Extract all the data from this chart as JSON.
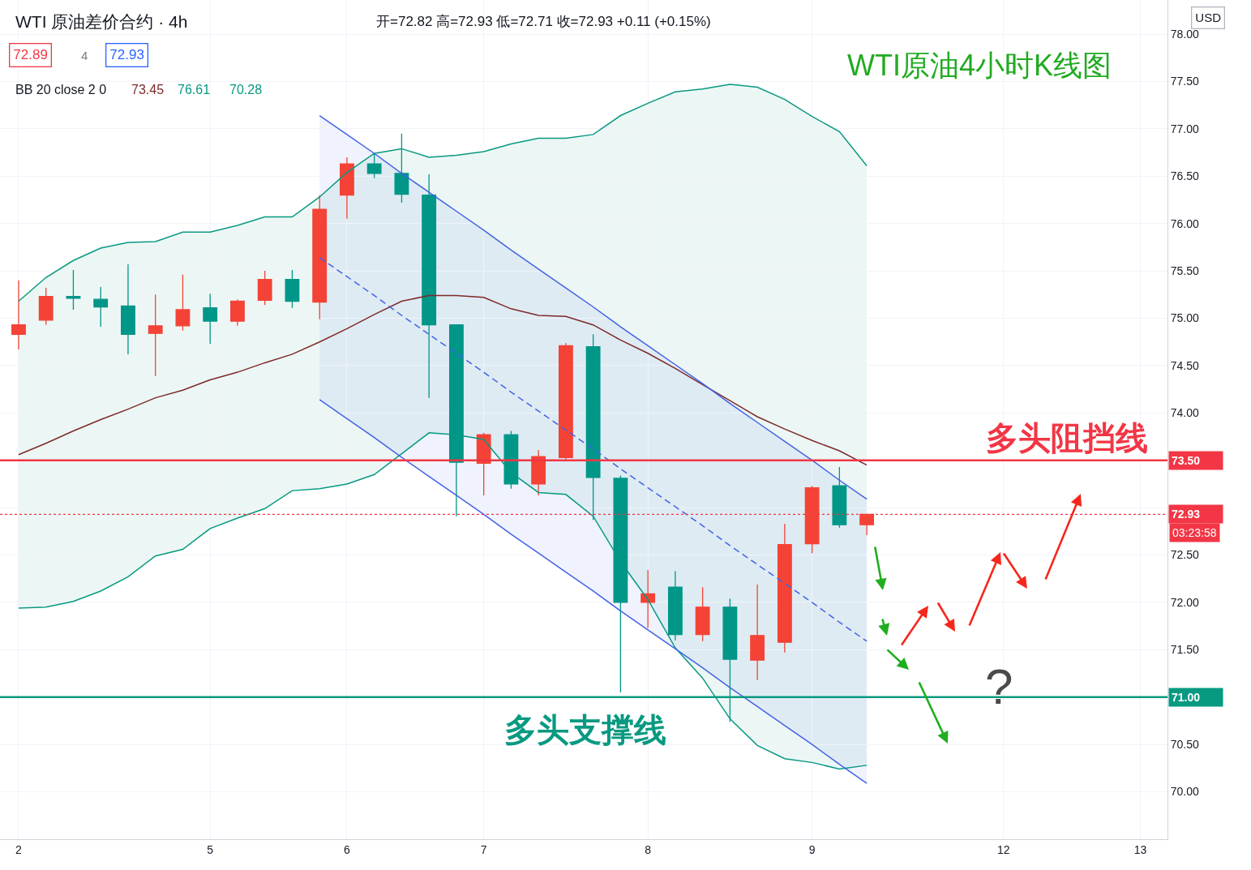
{
  "chart_data": {
    "type": "candlestick",
    "title": "WTI原油4小时K线图",
    "subtitle": "WTI 原油差价合约 · 4h",
    "categories": [
      "2",
      null,
      null,
      null,
      null,
      null,
      null,
      "5",
      null,
      null,
      null,
      null,
      "6",
      null,
      null,
      null,
      null,
      "7",
      null,
      null,
      null,
      null,
      null,
      "8",
      null,
      null,
      null,
      null,
      null,
      "9",
      null,
      null,
      null,
      null,
      null,
      null,
      "12",
      null,
      null,
      null,
      null,
      "13"
    ],
    "ohlc": [
      [
        74.83,
        75.4,
        74.67,
        74.93
      ],
      [
        74.98,
        75.32,
        74.93,
        75.23
      ],
      [
        75.23,
        75.51,
        75.09,
        75.21
      ],
      [
        75.2,
        75.33,
        74.91,
        75.12
      ],
      [
        75.13,
        75.57,
        74.62,
        74.83
      ],
      [
        74.84,
        75.25,
        74.39,
        74.92
      ],
      [
        74.92,
        75.46,
        74.87,
        75.09
      ],
      [
        75.11,
        75.26,
        74.73,
        74.97
      ],
      [
        74.97,
        75.2,
        74.92,
        75.18
      ],
      [
        75.19,
        75.5,
        75.14,
        75.41
      ],
      [
        75.41,
        75.51,
        75.11,
        75.18
      ],
      [
        75.17,
        76.3,
        74.99,
        76.15
      ],
      [
        76.3,
        76.7,
        76.05,
        76.63
      ],
      [
        76.63,
        76.74,
        76.48,
        76.53
      ],
      [
        76.53,
        76.95,
        76.22,
        76.31
      ],
      [
        76.3,
        76.52,
        74.16,
        74.93
      ],
      [
        74.93,
        74.93,
        72.91,
        73.48
      ],
      [
        73.47,
        73.79,
        73.13,
        73.77
      ],
      [
        73.77,
        73.81,
        73.2,
        73.25
      ],
      [
        73.25,
        73.61,
        73.13,
        73.54
      ],
      [
        73.53,
        74.74,
        73.5,
        74.71
      ],
      [
        74.7,
        74.83,
        72.87,
        73.32
      ],
      [
        73.31,
        73.34,
        71.05,
        72.0
      ],
      [
        72.0,
        72.34,
        71.73,
        72.09
      ],
      [
        72.16,
        72.33,
        71.6,
        71.66
      ],
      [
        71.66,
        72.16,
        71.59,
        71.95
      ],
      [
        71.95,
        72.04,
        70.74,
        71.4
      ],
      [
        71.39,
        72.19,
        71.18,
        71.65
      ],
      [
        71.58,
        72.83,
        71.47,
        72.61
      ],
      [
        72.62,
        73.23,
        72.52,
        73.21
      ],
      [
        73.23,
        73.43,
        72.79,
        72.82
      ],
      [
        72.82,
        72.93,
        72.71,
        72.93
      ],
      null,
      null,
      null,
      null,
      null,
      null,
      null,
      null,
      null,
      null
    ],
    "colors": [
      "#f44336",
      "#f44336",
      "#009688",
      "#009688",
      "#009688",
      "#f44336",
      "#f44336",
      "#009688",
      "#f44336",
      "#f44336",
      "#009688",
      "#f44336",
      "#f44336",
      "#009688",
      "#009688",
      "#009688",
      "#009688",
      "#f44336",
      "#009688",
      "#f44336",
      "#f44336",
      "#009688",
      "#009688",
      "#f44336",
      "#009688",
      "#f44336",
      "#009688",
      "#f44336",
      "#f44336",
      "#f44336",
      "#009688",
      "#f44336",
      null,
      null,
      null,
      null,
      null,
      null,
      null,
      null,
      null,
      null
    ],
    "series": [
      {
        "type": "line",
        "color": "#089981",
        "values": [
          75.18,
          75.43,
          75.61,
          75.74,
          75.8,
          75.81,
          75.91,
          75.91,
          75.98,
          76.07,
          76.07,
          76.28,
          76.54,
          76.74,
          76.79,
          76.7,
          76.72,
          76.76,
          76.84,
          76.9,
          76.9,
          76.94,
          77.14,
          77.27,
          77.39,
          77.42,
          77.47,
          77.44,
          77.31,
          77.13,
          76.97,
          76.61,
          null,
          null,
          null,
          null,
          null,
          null,
          null,
          null,
          null,
          null
        ],
        "lower": [
          71.94,
          71.95,
          72.01,
          72.12,
          72.27,
          72.49,
          72.56,
          72.78,
          72.89,
          72.99,
          73.18,
          73.2,
          73.25,
          73.35,
          73.57,
          73.79,
          73.77,
          73.72,
          73.37,
          73.16,
          73.14,
          72.91,
          72.43,
          72.03,
          71.52,
          71.2,
          70.77,
          70.49,
          70.35,
          70.31,
          70.24,
          70.28,
          null,
          null,
          null,
          null,
          null,
          null,
          null,
          null,
          null,
          null
        ],
        "upper": [
          75.18,
          75.43,
          75.61,
          75.74,
          75.8,
          75.81,
          75.91,
          75.91,
          75.98,
          76.07,
          76.07,
          76.28,
          76.54,
          76.74,
          76.79,
          76.7,
          76.72,
          76.76,
          76.84,
          76.9,
          76.9,
          76.94,
          77.14,
          77.27,
          77.39,
          77.42,
          77.47,
          77.44,
          77.31,
          77.13,
          76.97,
          76.61,
          null,
          null,
          null,
          null,
          null,
          null,
          null,
          null,
          null,
          null
        ]
      },
      {
        "type": "line",
        "color": "#7e2a2a",
        "values": [
          73.56,
          73.68,
          73.81,
          73.93,
          74.04,
          74.16,
          74.24,
          74.35,
          74.43,
          74.53,
          74.62,
          74.75,
          74.89,
          75.04,
          75.18,
          75.24,
          75.24,
          75.22,
          75.1,
          75.03,
          75.02,
          74.93,
          74.77,
          74.63,
          74.47,
          74.3,
          74.13,
          73.96,
          73.83,
          73.71,
          73.6,
          73.45,
          null,
          null,
          null,
          null,
          null,
          null,
          null,
          null,
          null,
          null
        ]
      },
      {
        "type": "line",
        "color": "#089981",
        "values": [
          71.94,
          71.95,
          72.01,
          72.12,
          72.27,
          72.49,
          72.56,
          72.78,
          72.89,
          72.99,
          73.18,
          73.2,
          73.25,
          73.35,
          73.57,
          73.79,
          73.77,
          73.72,
          73.37,
          73.16,
          73.14,
          72.91,
          72.43,
          72.03,
          71.52,
          71.2,
          70.77,
          70.49,
          70.35,
          70.31,
          70.24,
          70.28,
          null,
          null,
          null,
          null,
          null,
          null,
          null,
          null,
          null,
          null
        ]
      },
      {
        "type": "line",
        "color": "#4262e6",
        "values": [
          null,
          null,
          null,
          null,
          null,
          null,
          null,
          null,
          null,
          null,
          null,
          77.14,
          76.94,
          76.74,
          76.53,
          76.33,
          76.13,
          75.93,
          75.72,
          75.52,
          75.32,
          75.12,
          74.91,
          74.71,
          74.51,
          74.31,
          74.1,
          73.9,
          73.7,
          73.5,
          73.29,
          73.09,
          null,
          null,
          null,
          null,
          null,
          null,
          null,
          null,
          null,
          null
        ]
      },
      {
        "type": "line",
        "color": "#4262e6",
        "line_style": "dashed",
        "values": [
          null,
          null,
          null,
          null,
          null,
          null,
          null,
          null,
          null,
          null,
          null,
          75.64,
          75.44,
          75.24,
          75.03,
          74.83,
          74.63,
          74.43,
          74.22,
          74.02,
          73.82,
          73.62,
          73.41,
          73.21,
          73.01,
          72.81,
          72.6,
          72.4,
          72.2,
          72.0,
          71.79,
          71.59,
          null,
          null,
          null,
          null,
          null,
          null,
          null,
          null,
          null,
          null
        ],
        "lower": [
          null,
          null,
          null,
          null,
          null,
          null,
          null,
          null,
          null,
          null,
          null,
          74.14,
          73.94,
          73.74,
          73.53,
          73.33,
          73.13,
          72.93,
          72.72,
          72.52,
          72.32,
          72.12,
          71.91,
          71.71,
          71.51,
          71.31,
          71.1,
          70.9,
          70.7,
          70.5,
          70.29,
          70.09,
          null,
          null,
          null,
          null,
          null,
          null,
          null,
          null,
          null,
          null
        ],
        "upper": [
          null,
          null,
          null,
          null,
          null,
          null,
          null,
          null,
          null,
          null,
          null,
          77.14,
          76.94,
          76.74,
          76.53,
          76.33,
          76.13,
          75.93,
          75.72,
          75.52,
          75.32,
          75.12,
          74.91,
          74.71,
          74.51,
          74.31,
          74.1,
          73.9,
          73.7,
          73.5,
          73.29,
          73.09,
          null,
          null,
          null,
          null,
          null,
          null,
          null,
          null,
          null,
          null
        ]
      },
      {
        "type": "line",
        "color": "#4262e6",
        "values": [
          null,
          null,
          null,
          null,
          null,
          null,
          null,
          null,
          null,
          null,
          null,
          74.14,
          73.94,
          73.74,
          73.53,
          73.33,
          73.13,
          72.93,
          72.72,
          72.52,
          72.32,
          72.12,
          71.91,
          71.71,
          71.51,
          71.31,
          71.1,
          70.9,
          70.7,
          70.5,
          70.29,
          70.09,
          null,
          null,
          null,
          null,
          null,
          null,
          null,
          null,
          null,
          null
        ]
      }
    ],
    "ref_lines": [
      {
        "axis": "y",
        "value": 73.5,
        "label": "73.50",
        "color": "#f23645"
      },
      {
        "axis": "y",
        "value": 71.0,
        "label": "71.00",
        "color": "#089981"
      },
      {
        "axis": "y",
        "value": 72.93,
        "label": "72.93",
        "color": "#f23645",
        "line_style": "dotted"
      }
    ],
    "annotations": [
      "开=72.82 高=72.93 低=72.71 收=72.93 +0.11 (+0.15%)",
      "72.89",
      "4",
      "72.93",
      "BB 20 close 2 0",
      "73.45",
      "76.61",
      "70.28",
      "USD",
      "03:23:58",
      "多头阻挡线",
      "多头支撑线",
      "?"
    ],
    "ylim": [
      69.5,
      78.36
    ],
    "yticks": [
      {
        "value": 70,
        "label": "70.00"
      },
      {
        "value": 70.5,
        "label": "70.50"
      },
      {
        "value": 71,
        "label": null
      },
      {
        "value": 71.5,
        "label": "71.50"
      },
      {
        "value": 72,
        "label": "72.00"
      },
      {
        "value": 72.5,
        "label": "72.50"
      },
      {
        "value": 73,
        "label": null
      },
      {
        "value": 73.5,
        "label": null
      },
      {
        "value": 74,
        "label": "74.00"
      },
      {
        "value": 74.5,
        "label": "74.50"
      },
      {
        "value": 75,
        "label": "75.00"
      },
      {
        "value": 75.5,
        "label": "75.50"
      },
      {
        "value": 76,
        "label": "76.00"
      },
      {
        "value": 76.5,
        "label": "76.50"
      },
      {
        "value": 77,
        "label": "77.00"
      },
      {
        "value": 77.5,
        "label": "77.50"
      },
      {
        "value": 78,
        "label": "78.00"
      }
    ],
    "grid": true
  }
}
